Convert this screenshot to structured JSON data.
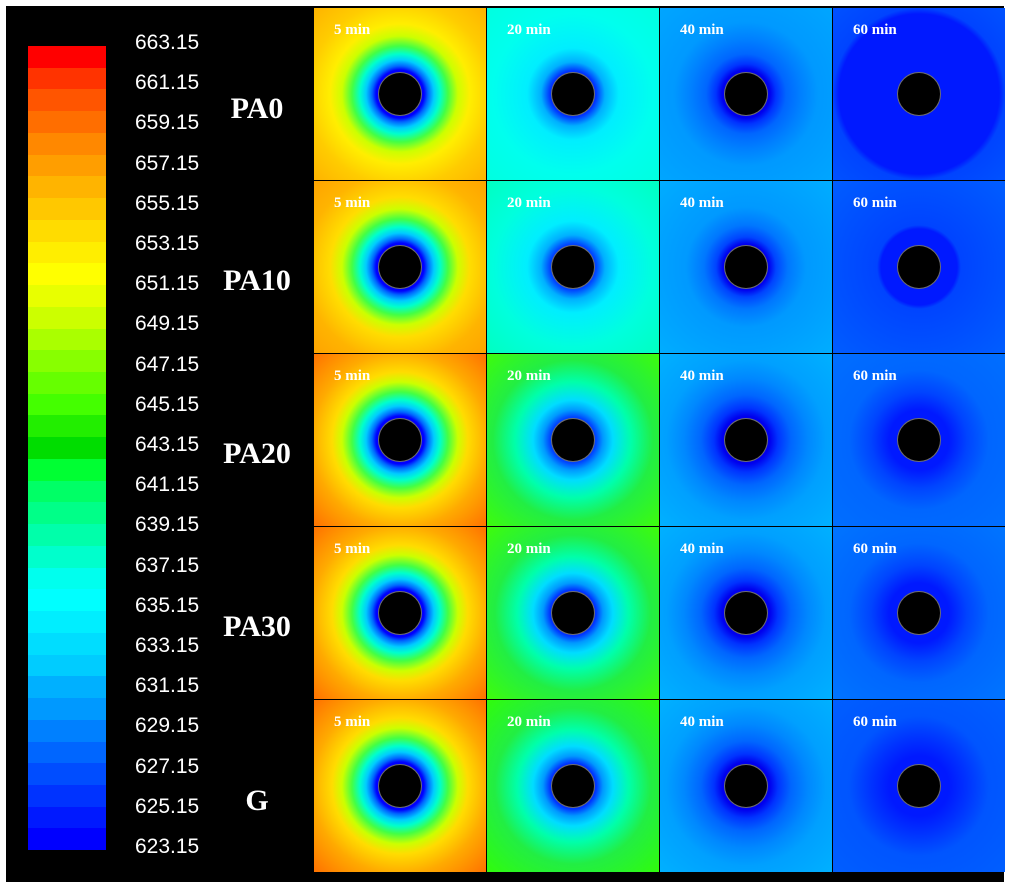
{
  "colorbar": {
    "tick_labels": [
      "663.15",
      "661.15",
      "659.15",
      "657.15",
      "655.15",
      "653.15",
      "651.15",
      "649.15",
      "647.15",
      "645.15",
      "643.15",
      "641.15",
      "639.15",
      "637.15",
      "635.15",
      "633.15",
      "631.15",
      "629.15",
      "627.15",
      "625.15",
      "623.15"
    ],
    "colors": [
      "#ff0000",
      "#ff3300",
      "#ff5500",
      "#ff6e00",
      "#ff8800",
      "#ff9e00",
      "#ffb400",
      "#ffc800",
      "#ffdc00",
      "#ffee00",
      "#ffff00",
      "#e8ff00",
      "#ccff00",
      "#aaff00",
      "#88ff00",
      "#66ff00",
      "#44ff00",
      "#22ee00",
      "#00dd00",
      "#00ff33",
      "#00ff66",
      "#00ff88",
      "#00ffaa",
      "#00ffcc",
      "#00ffee",
      "#00ffff",
      "#00eeff",
      "#00ddff",
      "#00ccff",
      "#00b0ff",
      "#0099ff",
      "#0080ff",
      "#0066ff",
      "#004dff",
      "#0033ff",
      "#0019ff",
      "#0000ff"
    ]
  },
  "rows": [
    {
      "label": "PA0",
      "panels": [
        {
          "time": "5 min",
          "bg": "radial-gradient(circle at 50% 50%, #000 0 19px, #0000ff 19px 24px, #0066ff 28px, #00ccff 34px, #00ffcc 40px, #44ff44 48px, #ccff00 58px, #ffee00 70px, #ffcc00 92px, #ffb000 125px)"
        },
        {
          "time": "20 min",
          "bg": "radial-gradient(circle at 50% 50%, #000 0 19px, #0033ff 19px 23px, #00b0ff 32px, #00eeff 46px, #00ffee 80px, #00ffdd 130px)"
        },
        {
          "time": "40 min",
          "bg": "radial-gradient(circle at 50% 50%, #000 0 19px, #0000ee 19px 24px, #0033ff 30px, #0066ff 40px, #0080ff 55px, #0099ff 72px, #00a8ff 130px)"
        },
        {
          "time": "60 min",
          "bg": "radial-gradient(circle at 50% 50%, #000 0 19px, #0019ff 19px 80px, #0044ff 86px, #0055ff 130px)"
        }
      ]
    },
    {
      "label": "PA10",
      "panels": [
        {
          "time": "5 min",
          "bg": "radial-gradient(circle at 50% 50%, #000 0 19px, #0000ff 19px 24px, #0066ff 28px, #00ccff 34px, #00ffcc 40px, #44ff44 48px, #ccff00 58px, #ffdd00 70px, #ffb400 95px, #ff9e00 130px)"
        },
        {
          "time": "20 min",
          "bg": "radial-gradient(circle at 50% 50%, #000 0 19px, #0044ff 19px 23px, #00b0ff 32px, #00eeff 46px, #00ffdd 80px, #00ffbb 130px)"
        },
        {
          "time": "40 min",
          "bg": "radial-gradient(circle at 50% 50%, #000 0 19px, #0000ee 19px 23px, #0044ff 30px, #0077ff 42px, #0099ff 60px, #00b0ff 130px)"
        },
        {
          "time": "60 min",
          "bg": "radial-gradient(circle at 50% 50%, #000 0 19px, #0019ff 19px 38px, #0044ff 42px, #0060ff 130px)"
        }
      ]
    },
    {
      "label": "PA20",
      "panels": [
        {
          "time": "5 min",
          "bg": "radial-gradient(circle at 50% 50%, #000 0 19px, #0000ff 19px 24px, #0066ff 28px, #00ccff 34px, #00ffcc 40px, #44ff44 48px, #ccff00 58px, #ffdc00 68px, #ffaa00 88px, #ff7700 118px, #ff6600 140px)"
        },
        {
          "time": "20 min",
          "bg": "radial-gradient(circle at 50% 50%, #000 0 19px, #0044ff 19px 23px, #0099ff 30px, #00ddff 40px, #00ffaa 58px, #22ee44 80px, #44ff00 130px)"
        },
        {
          "time": "40 min",
          "bg": "radial-gradient(circle at 50% 50%, #000 0 19px, #0000ee 19px 24px, #0033ff 32px, #0066ff 45px, #0088ff 62px, #00a0ff 80px, #00b4ff 130px)"
        },
        {
          "time": "60 min",
          "bg": "radial-gradient(circle at 50% 50%, #000 0 19px, #0019ff 19px 30px, #0044ff 48px, #0066ff 70px, #0070ff 130px)"
        }
      ]
    },
    {
      "label": "PA30",
      "panels": [
        {
          "time": "5 min",
          "bg": "radial-gradient(circle at 50% 50%, #000 0 19px, #0000ff 19px 24px, #0066ff 28px, #00ccff 34px, #00ffcc 40px, #44ff44 48px, #ccff00 58px, #ffdc00 68px, #ffaa00 88px, #ff7700 118px, #ff6600 140px)"
        },
        {
          "time": "20 min",
          "bg": "radial-gradient(circle at 50% 50%, #000 0 19px, #0033ff 19px 23px, #0099ff 30px, #00ddff 40px, #00ffaa 56px, #22ee44 78px, #44ff00 130px)"
        },
        {
          "time": "40 min",
          "bg": "radial-gradient(circle at 50% 50%, #000 0 19px, #0000ee 19px 24px, #0033ff 32px, #0066ff 45px, #0088ff 62px, #00a0ff 80px, #00b4ff 130px)"
        },
        {
          "time": "60 min",
          "bg": "radial-gradient(circle at 50% 50%, #000 0 19px, #0019ff 19px 30px, #0044ff 48px, #0066ff 70px, #0077ff 130px)"
        }
      ]
    },
    {
      "label": "G",
      "panels": [
        {
          "time": "5 min",
          "bg": "radial-gradient(circle at 50% 50%, #000 0 19px, #0000ff 19px 24px, #0066ff 28px, #00ccff 34px, #00ffcc 40px, #44ff44 48px, #ccff00 58px, #ffdc00 68px, #ffaa00 88px, #ff7700 118px, #ff6600 140px)"
        },
        {
          "time": "20 min",
          "bg": "radial-gradient(circle at 50% 50%, #000 0 19px, #0033ff 19px 23px, #0099ff 30px, #00ddff 40px, #00ffaa 56px, #22ee44 78px, #33ff00 130px)"
        },
        {
          "time": "40 min",
          "bg": "radial-gradient(circle at 50% 50%, #000 0 19px, #0000ee 19px 24px, #0033ff 32px, #0066ff 45px, #0088ff 62px, #00a0ff 80px, #00b4ff 130px)"
        },
        {
          "time": "60 min",
          "bg": "radial-gradient(circle at 50% 50%, #000 0 19px, #0019ff 19px 30px, #0033ff 48px, #0055ff 70px, #0060ff 130px)"
        }
      ]
    }
  ]
}
